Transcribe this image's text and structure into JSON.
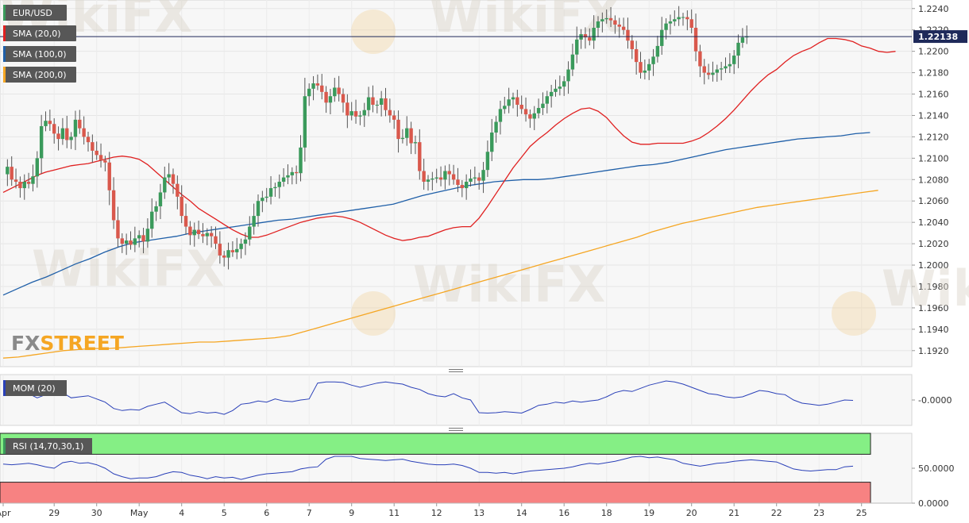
{
  "chart_data": {
    "type": "candlestick",
    "symbol": "EUR/USD",
    "brand": "FXSTREET",
    "watermark": "WikiFX",
    "current_price": 1.22138,
    "current_price_label": "1.22138",
    "price_ylim": [
      1.1905,
      1.2248
    ],
    "price_ticks": [
      "1.2240",
      "1.2220",
      "1.2200",
      "1.2180",
      "1.2160",
      "1.2140",
      "1.2120",
      "1.2100",
      "1.2080",
      "1.2060",
      "1.2040",
      "1.2020",
      "1.2000",
      "1.1980",
      "1.1960",
      "1.1940",
      "1.1920"
    ],
    "x_labels": [
      {
        "label": "Apr",
        "index": 0
      },
      {
        "label": "29",
        "index": 12
      },
      {
        "label": "30",
        "index": 22
      },
      {
        "label": "May",
        "index": 32
      },
      {
        "label": "4",
        "index": 42
      },
      {
        "label": "5",
        "index": 52
      },
      {
        "label": "6",
        "index": 62
      },
      {
        "label": "7",
        "index": 72
      },
      {
        "label": "9",
        "index": 82
      },
      {
        "label": "11",
        "index": 92
      },
      {
        "label": "12",
        "index": 102
      },
      {
        "label": "13",
        "index": 112
      },
      {
        "label": "14",
        "index": 122
      },
      {
        "label": "16",
        "index": 132
      },
      {
        "label": "18",
        "index": 142
      },
      {
        "label": "19",
        "index": 152
      },
      {
        "label": "20",
        "index": 162
      },
      {
        "label": "21",
        "index": 172
      },
      {
        "label": "22",
        "index": 182
      },
      {
        "label": "23",
        "index": 192
      },
      {
        "label": "25",
        "index": 202
      }
    ],
    "colors": {
      "up": "#3a9a5b",
      "down": "#d9584c",
      "sma20": "#e02020",
      "sma100": "#1f5fa8",
      "sma200": "#f5a623",
      "mom": "#2a40b8",
      "rsi": "#2a40b8"
    },
    "legend": [
      {
        "label": "EUR/USD",
        "color": "#3a9a5b"
      },
      {
        "label": "SMA (20,0)",
        "color": "#e02020"
      },
      {
        "label": "SMA (100,0)",
        "color": "#1f5fa8"
      },
      {
        "label": "SMA (200,0)",
        "color": "#f5a623"
      }
    ],
    "closes": [
      1.2085,
      1.2092,
      1.208,
      1.2078,
      1.2072,
      1.2078,
      1.2076,
      1.2083,
      1.21,
      1.213,
      1.2135,
      1.2132,
      1.2123,
      1.2118,
      1.2128,
      1.2117,
      1.212,
      1.2136,
      1.2128,
      1.212,
      1.2115,
      1.2107,
      1.2103,
      1.2098,
      1.2096,
      1.207,
      1.2042,
      1.2025,
      1.202,
      1.2023,
      1.2019,
      1.2025,
      1.2028,
      1.2022,
      1.2034,
      1.205,
      1.2055,
      1.2068,
      1.2082,
      1.2085,
      1.2076,
      1.2064,
      1.2046,
      1.2036,
      1.2028,
      1.2033,
      1.2029,
      1.2027,
      1.203,
      1.2027,
      1.202,
      1.2009,
      1.2007,
      1.2014,
      1.2012,
      1.2015,
      1.202,
      1.2024,
      1.2036,
      1.2046,
      1.206,
      1.2063,
      1.2064,
      1.2072,
      1.2073,
      1.2078,
      1.2082,
      1.2084,
      1.2087,
      1.2086,
      1.211,
      1.2158,
      1.2165,
      1.217,
      1.2168,
      1.2162,
      1.2152,
      1.2158,
      1.2166,
      1.216,
      1.2152,
      1.214,
      1.2144,
      1.2139,
      1.214,
      1.2145,
      1.2157,
      1.215,
      1.215,
      1.2156,
      1.2145,
      1.214,
      1.2136,
      1.2118,
      1.2119,
      1.2128,
      1.2114,
      1.2115,
      1.2088,
      1.2078,
      1.208,
      1.2081,
      1.2082,
      1.208,
      1.2088,
      1.2085,
      1.208,
      1.2075,
      1.2072,
      1.2078,
      1.2081,
      1.2082,
      1.2079,
      1.2089,
      1.2106,
      1.2124,
      1.2134,
      1.2146,
      1.2149,
      1.2155,
      1.2157,
      1.215,
      1.2146,
      1.2141,
      1.2137,
      1.2142,
      1.2147,
      1.2151,
      1.2158,
      1.2162,
      1.2165,
      1.2167,
      1.2172,
      1.2183,
      1.2197,
      1.2211,
      1.2216,
      1.2213,
      1.221,
      1.2222,
      1.2228,
      1.223,
      1.2231,
      1.2229,
      1.2225,
      1.2223,
      1.222,
      1.221,
      1.2202,
      1.219,
      1.218,
      1.2182,
      1.2188,
      1.2195,
      1.2205,
      1.222,
      1.2226,
      1.2228,
      1.223,
      1.2232,
      1.2232,
      1.223,
      1.2222,
      1.22,
      1.2186,
      1.218,
      1.2178,
      1.218,
      1.2183,
      1.2184,
      1.2186,
      1.2188,
      1.2196,
      1.2208,
      1.2213,
      1.2214
    ],
    "sma20": [
      1.2068,
      1.2072,
      1.2076,
      1.208,
      1.2084,
      1.2087,
      1.2089,
      1.2091,
      1.2093,
      1.2094,
      1.2095,
      1.2097,
      1.2099,
      1.2101,
      1.2102,
      1.2101,
      1.2099,
      1.2094,
      1.2087,
      1.208,
      1.2073,
      1.2066,
      1.206,
      1.2053,
      1.2048,
      1.2043,
      1.2038,
      1.2033,
      1.2029,
      1.2026,
      1.2026,
      1.2028,
      1.2031,
      1.2034,
      1.2037,
      1.204,
      1.2042,
      1.2044,
      1.2045,
      1.2046,
      1.2045,
      1.2043,
      1.204,
      1.2036,
      1.2032,
      1.2028,
      1.2025,
      1.2023,
      1.2024,
      1.2026,
      1.2027,
      1.203,
      1.2033,
      1.2035,
      1.2036,
      1.2036,
      1.2044,
      1.2055,
      1.2067,
      1.2079,
      1.2091,
      1.2101,
      1.2111,
      1.2118,
      1.2124,
      1.2131,
      1.2137,
      1.2142,
      1.2146,
      1.2147,
      1.2144,
      1.2138,
      1.2129,
      1.2121,
      1.2115,
      1.2113,
      1.2113,
      1.2114,
      1.2114,
      1.2114,
      1.2114,
      1.2116,
      1.2119,
      1.2124,
      1.213,
      1.2137,
      1.2145,
      1.2154,
      1.2163,
      1.2171,
      1.2178,
      1.2183,
      1.219,
      1.2196,
      1.22,
      1.2203,
      1.2208,
      1.2212,
      1.2212,
      1.2211,
      1.2209,
      1.2205,
      1.2203,
      1.22,
      1.2199,
      1.22
    ],
    "sma20_start": 0,
    "sma20_step": 2,
    "sma100": [
      1.1972,
      1.1978,
      1.1984,
      1.1989,
      1.1995,
      1.2001,
      1.2006,
      1.2012,
      1.2017,
      1.2021,
      1.2023,
      1.2025,
      1.2027,
      1.203,
      1.2032,
      1.2034,
      1.2036,
      1.2038,
      1.204,
      1.2042,
      1.2043,
      1.2045,
      1.2047,
      1.2049,
      1.2051,
      1.2053,
      1.2055,
      1.2057,
      1.2061,
      1.2065,
      1.2068,
      1.2071,
      1.2074,
      1.2076,
      1.2078,
      1.2079,
      1.208,
      1.208,
      1.2081,
      1.2083,
      1.2085,
      1.2087,
      1.2089,
      1.2091,
      1.2093,
      1.2094,
      1.2096,
      1.2099,
      1.2102,
      1.2105,
      1.2108,
      1.211,
      1.2112,
      1.2114,
      1.2116,
      1.2118,
      1.2119,
      1.212,
      1.2121,
      1.2123,
      1.2124
    ],
    "sma100_step": 3.4,
    "sma200": [
      1.1913,
      1.1914,
      1.1916,
      1.1918,
      1.192,
      1.1921,
      1.1922,
      1.1922,
      1.1923,
      1.1924,
      1.1925,
      1.1926,
      1.1927,
      1.1928,
      1.1928,
      1.1929,
      1.193,
      1.1931,
      1.1932,
      1.1934,
      1.1938,
      1.1942,
      1.1946,
      1.195,
      1.1954,
      1.1958,
      1.1962,
      1.1966,
      1.197,
      1.1974,
      1.1978,
      1.1982,
      1.1986,
      1.199,
      1.1994,
      1.1998,
      1.2002,
      1.2006,
      1.201,
      1.2014,
      1.2018,
      1.2022,
      1.2026,
      1.2031,
      1.2035,
      1.2039,
      1.2042,
      1.2045,
      1.2048,
      1.2051,
      1.2054,
      1.2056,
      1.2058,
      1.206,
      1.2062,
      1.2064,
      1.2066,
      1.2068,
      1.207
    ],
    "sma200_step": 3.55,
    "mom": {
      "label": "MOM (20)",
      "tick": "-0.0000",
      "ylim": [
        -0.012,
        0.012
      ],
      "values": [
        0.0045,
        0.004,
        0.0042,
        0.003,
        0.001,
        0.0025,
        0.004,
        0.0035,
        0.001,
        0.0015,
        0.002,
        0.0005,
        -0.001,
        -0.004,
        -0.005,
        -0.0045,
        -0.0048,
        -0.003,
        -0.002,
        -0.001,
        -0.0035,
        -0.006,
        -0.0065,
        -0.0055,
        -0.0062,
        -0.0058,
        -0.0068,
        -0.005,
        -0.002,
        -0.0015,
        -0.0005,
        -0.001,
        0.0005,
        -0.0005,
        -0.0008,
        0.0,
        0.0005,
        0.008,
        0.0085,
        0.0085,
        0.0083,
        0.007,
        0.006,
        0.007,
        0.008,
        0.0085,
        0.008,
        0.0075,
        0.006,
        0.005,
        0.003,
        0.002,
        0.0015,
        0.003,
        0.001,
        0.0,
        -0.006,
        -0.0062,
        -0.006,
        -0.0055,
        -0.0058,
        -0.0062,
        -0.0045,
        -0.0025,
        -0.002,
        -0.001,
        -0.0015,
        -0.0005,
        -0.001,
        -0.0005,
        0.0,
        0.0015,
        0.0035,
        0.0045,
        0.004,
        0.0055,
        0.007,
        0.008,
        0.009,
        0.0085,
        0.0075,
        0.006,
        0.0045,
        0.003,
        0.0025,
        0.0015,
        0.001,
        0.0015,
        0.003,
        0.0045,
        0.004,
        0.003,
        0.0025,
        0.0,
        -0.0015,
        -0.002,
        -0.0025,
        -0.002,
        -0.001,
        0.0,
        -0.0002
      ]
    },
    "rsi": {
      "label": "RSI (14,70,30,1)",
      "ticks": [
        "50.0000",
        "0.0000"
      ],
      "ylim": [
        0,
        100
      ],
      "overbought": 70,
      "oversold": 30,
      "values": [
        56,
        55,
        56,
        57,
        55,
        52,
        50,
        58,
        60,
        57,
        58,
        55,
        50,
        42,
        38,
        35,
        36,
        36,
        38,
        42,
        45,
        44,
        40,
        38,
        35,
        38,
        36,
        37,
        34,
        37,
        40,
        42,
        43,
        44,
        45,
        49,
        51,
        52,
        63,
        67,
        67,
        67,
        64,
        63,
        62,
        61,
        62,
        63,
        60,
        58,
        56,
        55,
        55,
        56,
        54,
        50,
        44,
        44,
        43,
        44,
        42,
        44,
        46,
        47,
        48,
        49,
        50,
        52,
        55,
        57,
        56,
        58,
        60,
        63,
        66,
        67,
        65,
        66,
        64,
        62,
        57,
        55,
        53,
        55,
        57,
        58,
        60,
        61,
        62,
        61,
        60,
        59,
        54,
        49,
        47,
        46,
        47,
        48,
        48,
        52,
        53
      ]
    }
  }
}
